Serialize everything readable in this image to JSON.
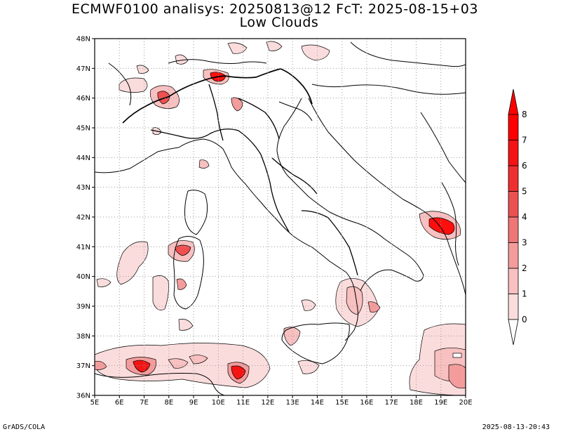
{
  "header": {
    "title_line1": "ECMWF0100 analisys: 20250813@12 FcT: 2025-08-15+03",
    "title_line2": "Low Clouds"
  },
  "map": {
    "lat_labels": [
      "48N",
      "47N",
      "46N",
      "45N",
      "44N",
      "43N",
      "42N",
      "41N",
      "40N",
      "39N",
      "38N",
      "37N",
      "36N"
    ],
    "lon_labels": [
      "5E",
      "6E",
      "7E",
      "8E",
      "9E",
      "10E",
      "11E",
      "12E",
      "13E",
      "14E",
      "15E",
      "16E",
      "17E",
      "18E",
      "19E",
      "20E"
    ],
    "lat_range": [
      36,
      48
    ],
    "lon_range": [
      5,
      20
    ],
    "gridlines": "dotted",
    "border_color": "#000000"
  },
  "colorbar": {
    "levels": [
      "0",
      "1",
      "2",
      "3",
      "4",
      "5",
      "6",
      "7",
      "8"
    ],
    "colors": [
      "#ffffff",
      "#fbdcdc",
      "#f8c0c0",
      "#f49c9c",
      "#ef7676",
      "#ea5252",
      "#ef3030",
      "#f51414",
      "#ff0000"
    ],
    "extend": "both"
  },
  "footer": {
    "left": "GrADS/COLA",
    "right": "2025-08-13-20:43"
  }
}
